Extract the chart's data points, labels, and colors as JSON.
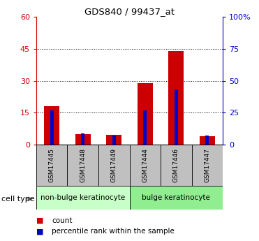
{
  "title": "GDS840 / 99437_at",
  "samples": [
    "GSM17445",
    "GSM17448",
    "GSM17449",
    "GSM17444",
    "GSM17446",
    "GSM17447"
  ],
  "counts": [
    18,
    5,
    4.5,
    29,
    44,
    4
  ],
  "percentile_ranks": [
    27,
    9,
    7,
    27,
    43,
    7
  ],
  "group_labels": [
    "non-bulge keratinocyte",
    "bulge keratinocyte"
  ],
  "bar_color_count": "#cc0000",
  "bar_color_pct": "#0000cc",
  "ylim_left": [
    0,
    60
  ],
  "ylim_right": [
    0,
    100
  ],
  "yticks_left": [
    0,
    15,
    30,
    45,
    60
  ],
  "ytick_labels_left": [
    "0",
    "15",
    "30",
    "45",
    "60"
  ],
  "yticks_right": [
    0,
    25,
    50,
    75,
    100
  ],
  "ytick_labels_right": [
    "0",
    "25",
    "50",
    "75",
    "100%"
  ],
  "grid_lines": [
    15,
    30,
    45
  ],
  "bg_color": "#ffffff",
  "sample_bg_color": "#c0c0c0",
  "non_bulge_color": "#c8ffc8",
  "bulge_color": "#90ee90",
  "cell_type_label": "cell type",
  "legend_count_label": "count",
  "legend_pct_label": "percentile rank within the sample",
  "bar_width": 0.5,
  "pct_bar_width": 0.12
}
